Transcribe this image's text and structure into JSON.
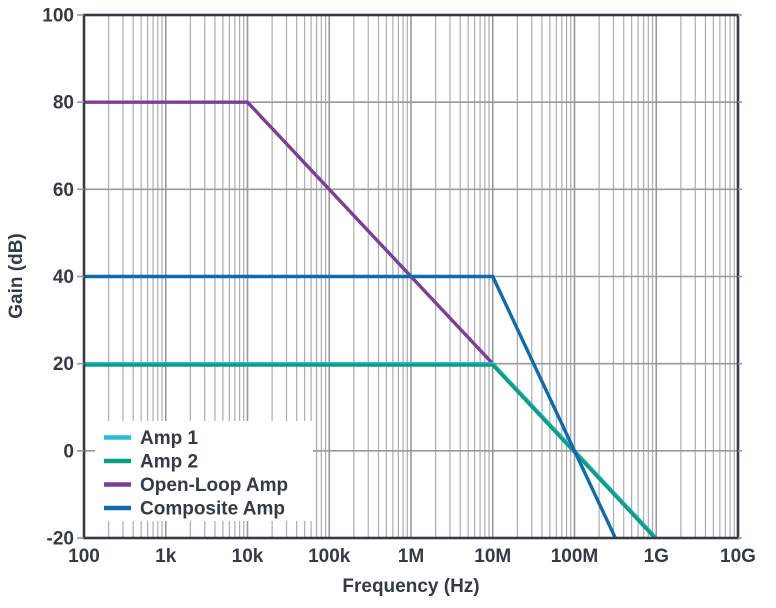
{
  "figure": {
    "background": "#FFFFFF",
    "axis_frame_color": "#343A46",
    "text_color": "#343A46",
    "grid_minor_color": "#ABADB0",
    "grid_major_color": "#97999D",
    "legend_background": "#FFFFFF"
  },
  "chart_data": {
    "type": "line",
    "title": "",
    "xlabel": "Frequency (Hz)",
    "ylabel": "Gain (dB)",
    "x_scale": "log",
    "xlim_hz": [
      100,
      10000000000
    ],
    "ylim_db": [
      -20,
      100
    ],
    "grid": "on (log minor + major verticals, 20 dB horizontals)",
    "x_ticks": [
      {
        "hz": 100,
        "label": "100"
      },
      {
        "hz": 1000,
        "label": "1k"
      },
      {
        "hz": 10000,
        "label": "10k"
      },
      {
        "hz": 100000,
        "label": "100k"
      },
      {
        "hz": 1000000,
        "label": "1M"
      },
      {
        "hz": 10000000,
        "label": "10M"
      },
      {
        "hz": 100000000,
        "label": "100M"
      },
      {
        "hz": 1000000000,
        "label": "1G"
      },
      {
        "hz": 10000000000,
        "label": "10G"
      }
    ],
    "y_ticks": [
      {
        "db": -20,
        "label": "-20"
      },
      {
        "db": 0,
        "label": "0"
      },
      {
        "db": 20,
        "label": "20"
      },
      {
        "db": 40,
        "label": "40"
      },
      {
        "db": 60,
        "label": "60"
      },
      {
        "db": 80,
        "label": "80"
      },
      {
        "db": 100,
        "label": "100"
      }
    ],
    "legend": {
      "position": "lower-left",
      "labels": [
        "Amp 1",
        "Amp 2",
        "Open-Loop Amp",
        "Composite Amp"
      ]
    },
    "series": [
      {
        "name": "Amp 1",
        "color": "#2ABBDB",
        "flat_gain_db": 20,
        "corner_hz": 10000000,
        "rolloff_db_per_decade": -20,
        "points_hz_db": [
          [
            100,
            20
          ],
          [
            10000000,
            20
          ],
          [
            1000000000,
            -20
          ]
        ]
      },
      {
        "name": "Amp 2",
        "color": "#0A9F85",
        "flat_gain_db": 20,
        "corner_hz": 10000000,
        "rolloff_db_per_decade": -20,
        "points_hz_db": [
          [
            100,
            20
          ],
          [
            10000000,
            20
          ],
          [
            1000000000,
            -20
          ]
        ]
      },
      {
        "name": "Open-Loop Amp",
        "color": "#7C3F98",
        "flat_gain_db": 80,
        "corner_hz": 10000,
        "rolloff_db_per_decade": -20,
        "points_hz_db": [
          [
            100,
            80
          ],
          [
            10000,
            80
          ],
          [
            1000000000,
            -20
          ]
        ]
      },
      {
        "name": "Composite Amp",
        "color": "#0F6BAD",
        "flat_gain_db": 40,
        "corner_hz": 10000000,
        "rolloff_db_per_decade": -40,
        "points_hz_db": [
          [
            100,
            40
          ],
          [
            10000000,
            40
          ],
          [
            316227766,
            -20
          ]
        ]
      }
    ]
  }
}
